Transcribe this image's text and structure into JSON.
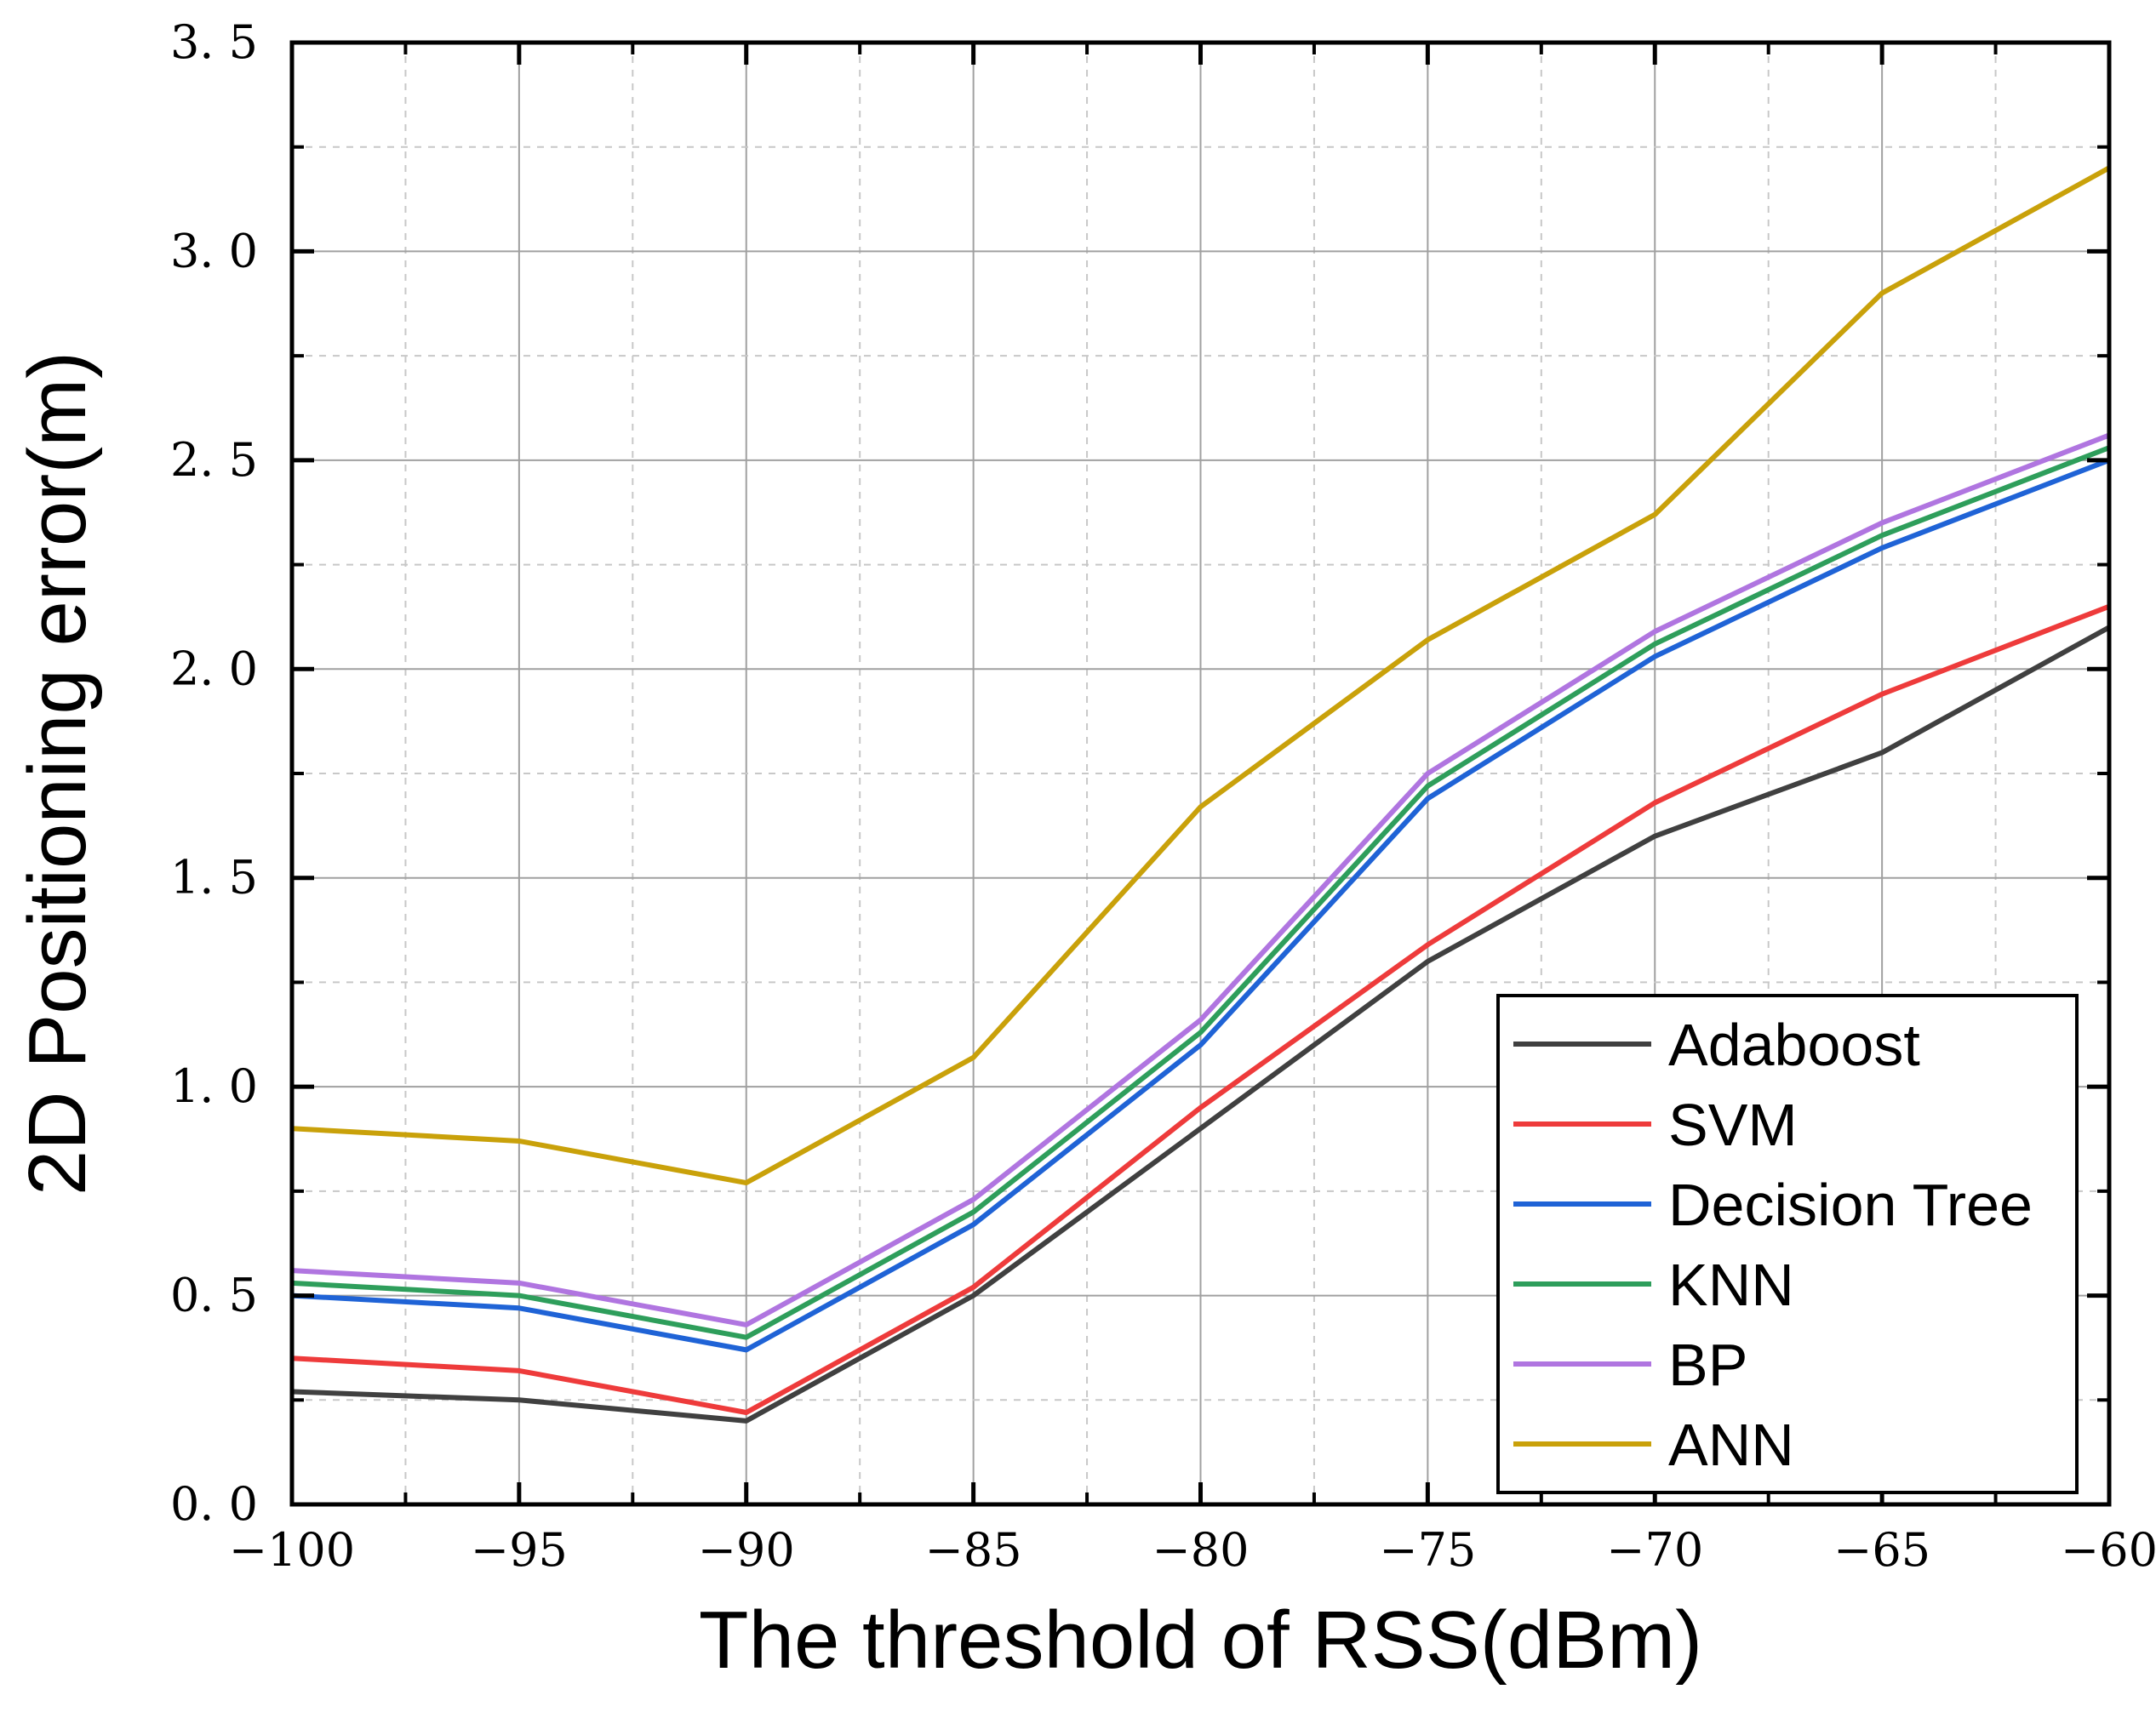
{
  "chart_data": {
    "type": "line",
    "title": "",
    "xlabel": "The threshold of RSS(dBm)",
    "ylabel": "2D Positioning error(m)",
    "xlim": [
      -100,
      -60
    ],
    "ylim": [
      0.0,
      3.5
    ],
    "xticks": [
      -100,
      -95,
      -90,
      -85,
      -80,
      -75,
      -70,
      -65,
      -60
    ],
    "xtick_labels": [
      "−100",
      "−95",
      "−90",
      "−85",
      "−80",
      "−75",
      "−70",
      "−65",
      "−60"
    ],
    "yticks": [
      0.0,
      0.5,
      1.0,
      1.5,
      2.0,
      2.5,
      3.0,
      3.5
    ],
    "ytick_labels": [
      "0. 0",
      "0. 5",
      "1. 0",
      "1. 5",
      "2. 0",
      "2. 5",
      "3. 0",
      "3. 5"
    ],
    "grid": true,
    "legend_position": "bottom-right",
    "x": [
      -100,
      -95,
      -90,
      -85,
      -80,
      -75,
      -70,
      -65,
      -60
    ],
    "series": [
      {
        "name": "Adaboost",
        "color": "#404040",
        "values": [
          0.27,
          0.25,
          0.2,
          0.5,
          0.9,
          1.3,
          1.6,
          1.8,
          2.1
        ]
      },
      {
        "name": "SVM",
        "color": "#ee3b3b",
        "values": [
          0.35,
          0.32,
          0.22,
          0.52,
          0.95,
          1.34,
          1.68,
          1.94,
          2.15
        ]
      },
      {
        "name": "Decision Tree",
        "color": "#1f63d6",
        "values": [
          0.5,
          0.47,
          0.37,
          0.67,
          1.1,
          1.69,
          2.03,
          2.29,
          2.5
        ]
      },
      {
        "name": "KNN",
        "color": "#2e9e5b",
        "values": [
          0.53,
          0.5,
          0.4,
          0.7,
          1.13,
          1.72,
          2.06,
          2.32,
          2.53
        ]
      },
      {
        "name": "BP",
        "color": "#b075e0",
        "values": [
          0.56,
          0.53,
          0.43,
          0.73,
          1.16,
          1.75,
          2.09,
          2.35,
          2.56
        ]
      },
      {
        "name": "ANN",
        "color": "#c9a10a",
        "values": [
          0.9,
          0.87,
          0.77,
          1.07,
          1.67,
          2.07,
          2.37,
          2.9,
          3.2
        ]
      }
    ]
  }
}
